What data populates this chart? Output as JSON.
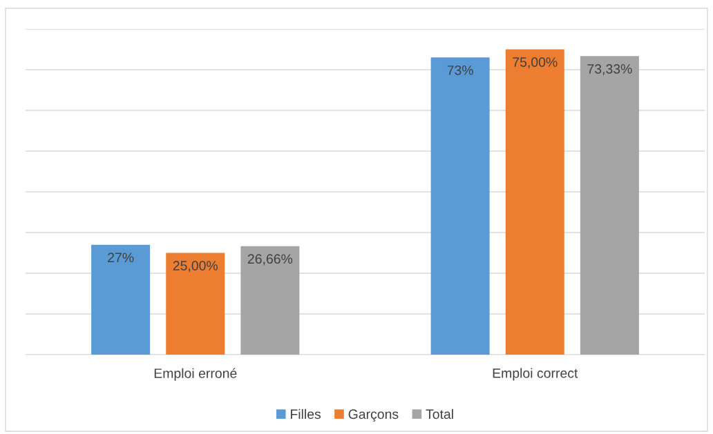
{
  "chart_data": {
    "type": "bar",
    "categories": [
      "Emploi erroné",
      "Emploi correct"
    ],
    "series": [
      {
        "name": "Filles",
        "color": "#5b9bd5",
        "values": [
          27,
          73
        ],
        "value_labels": [
          "27%",
          "73%"
        ]
      },
      {
        "name": "Garçons",
        "color": "#ed7d31",
        "values": [
          25,
          75
        ],
        "value_labels": [
          "25,00%",
          "75,00%"
        ]
      },
      {
        "name": "Total",
        "color": "#a5a5a5",
        "values": [
          26.66,
          73.33
        ],
        "value_labels": [
          "26,66%",
          "73,33%"
        ]
      }
    ],
    "ylim": [
      0,
      80
    ],
    "yticks": [
      {
        "value": 0,
        "label": null
      },
      {
        "value": 10,
        "label": null
      },
      {
        "value": 20,
        "label": null
      },
      {
        "value": 30,
        "label": null
      },
      {
        "value": 40,
        "label": null
      },
      {
        "value": 50,
        "label": null
      },
      {
        "value": 60,
        "label": null
      },
      {
        "value": 70,
        "label": null
      },
      {
        "value": 80,
        "label": null
      }
    ],
    "tick_labels": "x",
    "grid": "y",
    "legend": "bottom"
  }
}
